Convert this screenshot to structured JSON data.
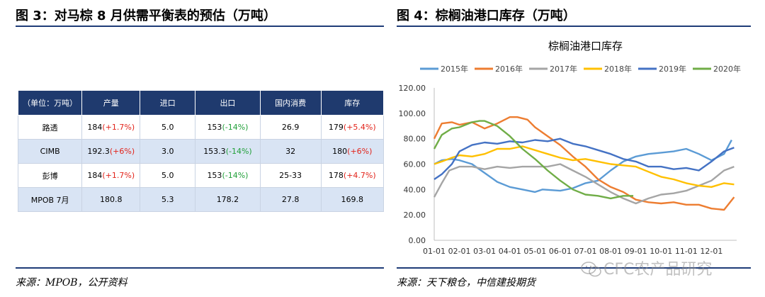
{
  "left_panel": {
    "title": "图 3：对马棕 8 月供需平衡表的预估（万吨）",
    "source": "来源：MPOB，公开资料",
    "table": {
      "headers": [
        "（单位：万吨）",
        "产量",
        "进口",
        "出口",
        "国内消费",
        "库存"
      ],
      "rows": [
        {
          "name": "路透",
          "prod": "184",
          "prod_chg": "(+1.7%)",
          "imp": "5.0",
          "exp": "153",
          "exp_chg": "(-14%)",
          "cons": "26.9",
          "stock": "179",
          "stock_chg": "(+5.4%)"
        },
        {
          "name": "CIMB",
          "prod": "192.3",
          "prod_chg": "(+6%)",
          "imp": "3.0",
          "exp": "153.3",
          "exp_chg": "(-14%)",
          "cons": "32",
          "stock": "180",
          "stock_chg": "(+6%)"
        },
        {
          "name": "彭博",
          "prod": "184",
          "prod_chg": "(+1.7%)",
          "imp": "5.0",
          "exp": "153",
          "exp_chg": "(-14%)",
          "cons": "25-33",
          "stock": "178",
          "stock_chg": "(+4.7%)"
        },
        {
          "name": "MPOB 7月",
          "prod": "180.8",
          "prod_chg": "",
          "imp": "5.3",
          "exp": "178.2",
          "exp_chg": "",
          "cons": "27.8",
          "stock": "169.8",
          "stock_chg": ""
        }
      ]
    }
  },
  "right_panel": {
    "title": "图 4：棕榈油港口库存（万吨）",
    "source": "来源：天下粮仓，中信建投期货",
    "watermark": "CFC农产品研究"
  },
  "chart_data": {
    "type": "line",
    "title": "棕榈油港口库存",
    "legend_position": "top",
    "grid": false,
    "ylim": [
      0,
      120
    ],
    "yticks": [
      "0.00",
      "20.00",
      "40.00",
      "60.00",
      "80.00",
      "100.00",
      "120.00"
    ],
    "xticks": [
      "01-01",
      "02-01",
      "03-01",
      "04-01",
      "05-01",
      "06-01",
      "07-01",
      "08-01",
      "09-01",
      "10-01",
      "11-01",
      "12-01"
    ],
    "series": [
      {
        "name": "2015年",
        "color": "#5b9bd5",
        "x": [
          0,
          0.3,
          0.7,
          1.0,
          1.5,
          2.0,
          2.5,
          3.0,
          3.5,
          4.0,
          4.3,
          5.0,
          5.5,
          6.0,
          6.5,
          7.0,
          7.5,
          8.0,
          8.5,
          9.0,
          9.5,
          10.0,
          10.5,
          11.0,
          11.5,
          11.8
        ],
        "y": [
          60,
          63,
          64,
          63,
          60,
          53,
          46,
          42,
          40,
          38,
          40,
          39,
          41,
          45,
          47,
          55,
          62,
          66,
          68,
          69,
          70,
          72,
          68,
          63,
          68,
          79
        ]
      },
      {
        "name": "2016年",
        "color": "#ed7d31",
        "x": [
          0,
          0.3,
          0.7,
          1.0,
          1.5,
          2.0,
          2.5,
          3.0,
          3.3,
          3.7,
          4.0,
          4.5,
          5.0,
          5.5,
          6.0,
          6.5,
          7.0,
          7.5,
          8.0,
          8.5,
          9.0,
          9.5,
          10.0,
          10.5,
          11.0,
          11.5,
          11.9
        ],
        "y": [
          80,
          92,
          93,
          91,
          93,
          88,
          92,
          97,
          97,
          95,
          89,
          82,
          75,
          66,
          58,
          48,
          42,
          38,
          32,
          30,
          29,
          30,
          28,
          28,
          25,
          24,
          34
        ]
      },
      {
        "name": "2017年",
        "color": "#a5a5a5",
        "x": [
          0,
          0.3,
          0.6,
          1.0,
          1.5,
          2.0,
          2.5,
          3.0,
          3.5,
          4.0,
          4.5,
          5.0,
          5.5,
          6.0,
          6.5,
          7.0,
          7.5,
          8.0,
          8.5,
          9.0,
          9.5,
          10.0,
          10.5,
          11.0,
          11.5,
          11.9
        ],
        "y": [
          34,
          45,
          55,
          58,
          58,
          56,
          58,
          57,
          58,
          58,
          58,
          60,
          55,
          50,
          44,
          38,
          33,
          29,
          33,
          36,
          37,
          39,
          43,
          47,
          55,
          58
        ]
      },
      {
        "name": "2018年",
        "color": "#ffc000",
        "x": [
          0,
          0.3,
          0.7,
          1.0,
          1.5,
          2.0,
          2.5,
          3.0,
          3.5,
          4.0,
          4.5,
          5.0,
          5.5,
          6.0,
          6.5,
          7.0,
          7.5,
          8.0,
          8.5,
          9.0,
          9.5,
          10.0,
          10.5,
          11.0,
          11.5,
          11.9
        ],
        "y": [
          60,
          62,
          65,
          67,
          66,
          68,
          72,
          72,
          74,
          71,
          68,
          65,
          63,
          64,
          62,
          60,
          59,
          58,
          54,
          50,
          48,
          45,
          43,
          42,
          45,
          44
        ]
      },
      {
        "name": "2019年",
        "color": "#4472c4",
        "x": [
          0,
          0.3,
          0.7,
          1.0,
          1.5,
          2.0,
          2.5,
          3.0,
          3.5,
          4.0,
          4.5,
          5.0,
          5.5,
          6.0,
          6.5,
          7.0,
          7.5,
          8.0,
          8.5,
          9.0,
          9.5,
          10.0,
          10.5,
          11.0,
          11.5,
          11.9
        ],
        "y": [
          48,
          52,
          60,
          70,
          75,
          77,
          76,
          78,
          77,
          79,
          78,
          80,
          76,
          74,
          71,
          68,
          64,
          62,
          58,
          58,
          56,
          57,
          55,
          62,
          70,
          73
        ]
      },
      {
        "name": "2020年",
        "color": "#70ad47",
        "x": [
          0,
          0.3,
          0.7,
          1.0,
          1.5,
          1.8,
          2.0,
          2.5,
          3.0,
          3.5,
          4.0,
          4.5,
          5.0,
          5.5,
          6.0,
          6.5,
          7.0,
          7.5,
          7.9
        ],
        "y": [
          72,
          83,
          88,
          89,
          93,
          94,
          94,
          90,
          82,
          72,
          64,
          55,
          47,
          40,
          36,
          35,
          33,
          35,
          35
        ]
      }
    ]
  }
}
